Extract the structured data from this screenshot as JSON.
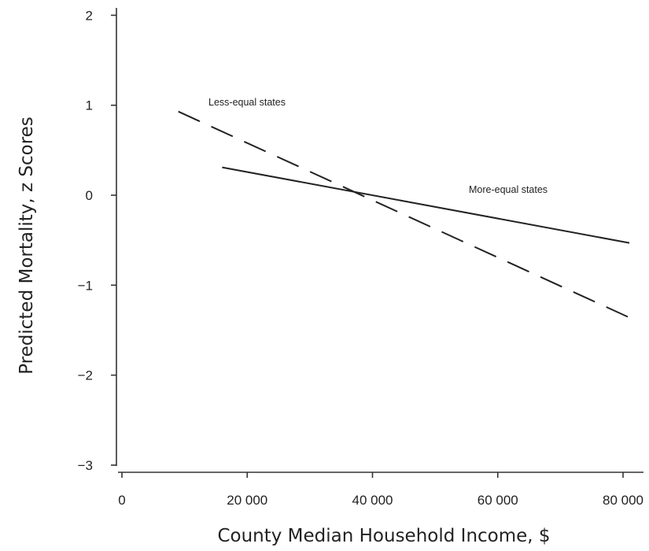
{
  "chart_data": {
    "type": "line",
    "title": "",
    "xlabel": "County Median Household Income, $",
    "ylabel": "Predicted Mortality, z Scores",
    "xlim": [
      0,
      84000
    ],
    "ylim": [
      -3.1,
      2.1
    ],
    "x_ticks": [
      0,
      20000,
      40000,
      60000,
      80000
    ],
    "x_tick_labels": [
      "0",
      "20 000",
      "40 000",
      "60 000",
      "80 000"
    ],
    "y_ticks": [
      2,
      1,
      0,
      -1,
      -2,
      -3
    ],
    "y_tick_labels": [
      "2",
      "1",
      "0",
      "−1",
      "−2",
      "−3"
    ],
    "grid": false,
    "series": [
      {
        "name": "Less-equal states",
        "style": "dashed",
        "x": [
          9000,
          81000
        ],
        "y": [
          0.93,
          -1.36
        ]
      },
      {
        "name": "More-equal states",
        "style": "solid",
        "x": [
          16000,
          81000
        ],
        "y": [
          0.31,
          -0.53
        ]
      }
    ],
    "colors": {
      "line": "#222222",
      "axis": "#333333"
    }
  }
}
